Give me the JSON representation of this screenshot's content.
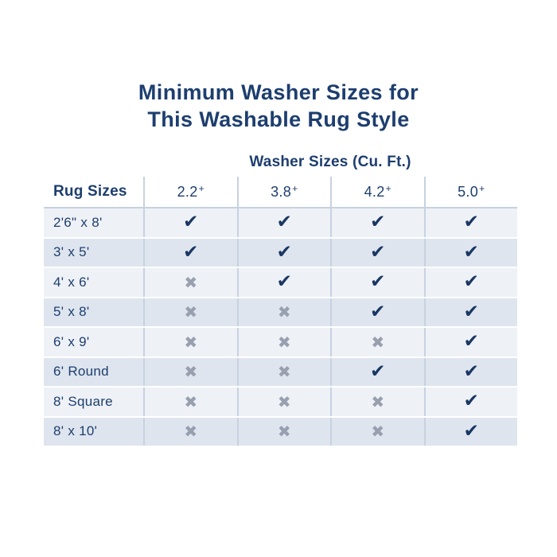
{
  "title": {
    "line1": "Minimum Washer Sizes for",
    "line2": "This Washable Rug Style"
  },
  "chart_data": {
    "type": "table",
    "title": "Minimum Washer Sizes for This Washable Rug Style",
    "group_header": "Washer Sizes (Cu. Ft.)",
    "row_header": "Rug Sizes",
    "columns": [
      {
        "value": "2.2",
        "suffix": "+"
      },
      {
        "value": "3.8",
        "suffix": "+"
      },
      {
        "value": "4.2",
        "suffix": "+"
      },
      {
        "value": "5.0",
        "suffix": "+"
      }
    ],
    "rows": [
      {
        "label": "2'6\" x 8'",
        "marks": [
          "check",
          "check",
          "check",
          "check"
        ]
      },
      {
        "label": "3' x 5'",
        "marks": [
          "check",
          "check",
          "check",
          "check"
        ]
      },
      {
        "label": "4' x 6'",
        "marks": [
          "x",
          "check",
          "check",
          "check"
        ]
      },
      {
        "label": "5' x 8'",
        "marks": [
          "x",
          "x",
          "check",
          "check"
        ]
      },
      {
        "label": "6' x 9'",
        "marks": [
          "x",
          "x",
          "x",
          "check"
        ]
      },
      {
        "label": "6' Round",
        "marks": [
          "x",
          "x",
          "check",
          "check"
        ]
      },
      {
        "label": "8' Square",
        "marks": [
          "x",
          "x",
          "x",
          "check"
        ]
      },
      {
        "label": "8' x 10'",
        "marks": [
          "x",
          "x",
          "x",
          "check"
        ]
      }
    ]
  },
  "glyphs": {
    "check": "✔",
    "x": "✖"
  },
  "colors": {
    "navy": "#1d3e6f",
    "check_navy": "#1a3763",
    "x_gray": "#989fae",
    "row_light": "#eef1f6",
    "row_dark": "#dee5ee",
    "divider": "#c7d2e0"
  }
}
